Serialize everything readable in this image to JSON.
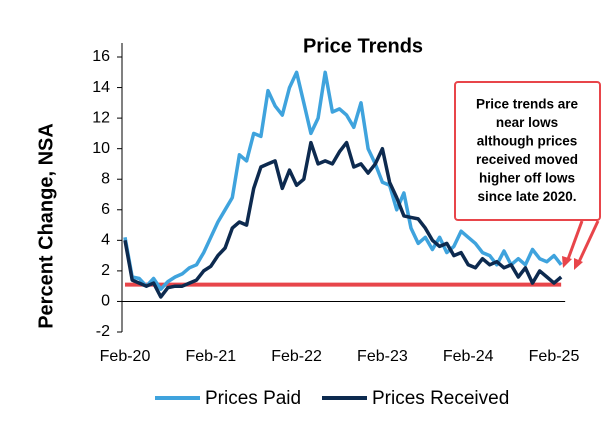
{
  "chart_data": {
    "type": "line",
    "title": "Price Trends",
    "y_label": "Percent Change, NSA",
    "categories": [
      "Feb-20",
      null,
      null,
      null,
      null,
      null,
      null,
      null,
      null,
      null,
      null,
      null,
      "Feb-21",
      null,
      null,
      null,
      null,
      null,
      null,
      null,
      null,
      null,
      null,
      null,
      "Feb-22",
      null,
      null,
      null,
      null,
      null,
      null,
      null,
      null,
      null,
      null,
      null,
      "Feb-23",
      null,
      null,
      null,
      null,
      null,
      null,
      null,
      null,
      null,
      null,
      null,
      "Feb-24",
      null,
      null,
      null,
      null,
      null,
      null,
      null,
      null,
      null,
      null,
      null,
      "Feb-25",
      null
    ],
    "series": [
      {
        "name": "Prices Paid",
        "color": "#3fa3dd",
        "values": [
          4.2,
          1.6,
          1.5,
          1.0,
          1.5,
          0.8,
          1.3,
          1.6,
          1.8,
          2.2,
          2.4,
          3.2,
          4.2,
          5.2,
          6.0,
          6.8,
          9.6,
          9.2,
          11.0,
          10.8,
          13.8,
          12.8,
          12.2,
          14.0,
          15.0,
          13.0,
          11.0,
          12.0,
          15.0,
          12.4,
          12.6,
          12.2,
          11.4,
          13.0,
          10.0,
          9.0,
          7.8,
          7.6,
          6.0,
          7.1,
          4.8,
          3.8,
          4.2,
          3.4,
          4.2,
          3.2,
          3.6,
          4.6,
          4.2,
          3.8,
          3.2,
          3.0,
          2.4,
          3.3,
          2.4,
          2.8,
          2.4,
          3.4,
          2.8,
          2.6,
          3.0,
          2.4
        ]
      },
      {
        "name": "Prices Received",
        "color": "#0d2a4f",
        "values": [
          4.0,
          1.4,
          1.2,
          1.0,
          1.2,
          0.3,
          0.9,
          1.0,
          1.0,
          1.2,
          1.4,
          2.0,
          2.3,
          3.0,
          3.5,
          4.8,
          5.2,
          5.0,
          7.4,
          8.8,
          9.0,
          9.2,
          7.4,
          8.6,
          7.6,
          8.0,
          10.4,
          9.0,
          9.2,
          9.0,
          9.8,
          10.4,
          8.8,
          9.0,
          8.4,
          9.0,
          10.0,
          7.8,
          6.8,
          5.6,
          5.5,
          5.4,
          4.8,
          4.0,
          3.6,
          3.8,
          3.0,
          3.2,
          2.4,
          2.2,
          2.8,
          2.4,
          2.6,
          2.2,
          2.4,
          1.6,
          2.2,
          1.2,
          2.0,
          1.6,
          1.2,
          1.6
        ]
      }
    ],
    "reference_line": {
      "value": 1.1,
      "color": "#e8454a"
    },
    "annotation": [
      "Price trends are",
      "near lows",
      "although prices",
      "received moved",
      "higher off lows",
      "since late 2020."
    ],
    "ylim": [
      -2,
      16
    ],
    "yticks": [
      -2,
      0,
      2,
      4,
      6,
      8,
      10,
      12,
      14,
      16
    ],
    "grid": false,
    "legend": "bottom"
  }
}
